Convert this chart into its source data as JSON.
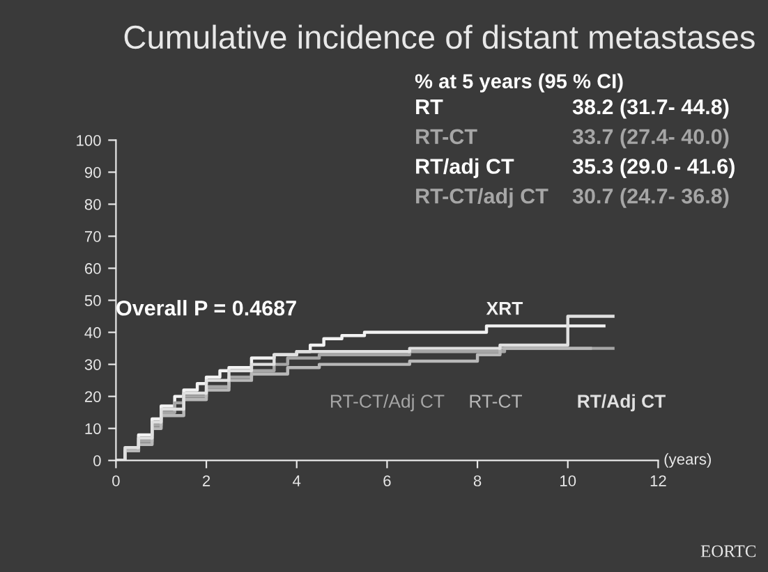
{
  "chart_data": {
    "type": "step",
    "title": "Cumulative incidence of distant metastases",
    "xlabel": "(years)",
    "xlim": [
      0,
      12
    ],
    "xticks": [
      0,
      2,
      4,
      6,
      8,
      10,
      12
    ],
    "ylim": [
      0,
      100
    ],
    "yticks": [
      0,
      10,
      20,
      30,
      40,
      50,
      60,
      70,
      80,
      90,
      100
    ],
    "grid": false,
    "legend": false,
    "annotations": [
      "% at 5 years (95 % CI)",
      "RT",
      "38.2 (31.7- 44.8)",
      "RT-CT",
      "33.7 (27.4- 40.0)",
      "RT/adj CT",
      "35.3 (29.0 - 41.6)",
      "RT-CT/adj CT",
      "30.7 (24.7- 36.8)",
      "Overall P = 0.4687",
      "EORTC"
    ],
    "series": [
      {
        "name": "XRT",
        "color": "#f2f2f2",
        "x": [
          0,
          0.2,
          0.5,
          0.8,
          1,
          1.3,
          1.5,
          1.8,
          2,
          2.3,
          2.5,
          3,
          3.5,
          4,
          4.3,
          4.6,
          5,
          5.5,
          6.5,
          8.2,
          10.8
        ],
        "values": [
          0,
          3,
          8,
          13,
          17,
          20,
          22,
          24,
          26,
          28,
          29,
          32,
          33,
          34,
          36,
          38,
          39,
          40,
          40,
          42,
          42
        ]
      },
      {
        "name": "RT-CT/Adj CT",
        "color": "#a6a6a6",
        "x": [
          0,
          0.2,
          0.5,
          0.8,
          1,
          1.3,
          1.5,
          2,
          2.5,
          3,
          3.5,
          3.8,
          4.5,
          6.5,
          8.6,
          11
        ],
        "values": [
          0,
          3,
          6,
          11,
          15,
          18,
          20,
          23,
          26,
          28,
          30,
          32,
          33,
          34,
          35,
          35
        ]
      },
      {
        "name": "RT-CT",
        "color": "#b8b8b8",
        "x": [
          0,
          0.2,
          0.5,
          0.8,
          1,
          1.5,
          2,
          2.5,
          3,
          3.8,
          4.5,
          6.5,
          8,
          8.5,
          10.5
        ],
        "values": [
          0,
          3,
          5,
          10,
          14,
          19,
          22,
          25,
          27,
          29,
          30,
          31,
          33,
          35,
          35
        ]
      },
      {
        "name": "RT/Adj CT",
        "color": "#e0e0e0",
        "x": [
          0,
          0.2,
          0.5,
          0.8,
          1,
          1.5,
          2,
          2.5,
          3,
          3.5,
          4,
          5,
          6.5,
          8.5,
          10,
          11
        ],
        "values": [
          0,
          4,
          7,
          12,
          16,
          21,
          25,
          28,
          30,
          33,
          34,
          34,
          35,
          36,
          45,
          45
        ]
      }
    ]
  }
}
